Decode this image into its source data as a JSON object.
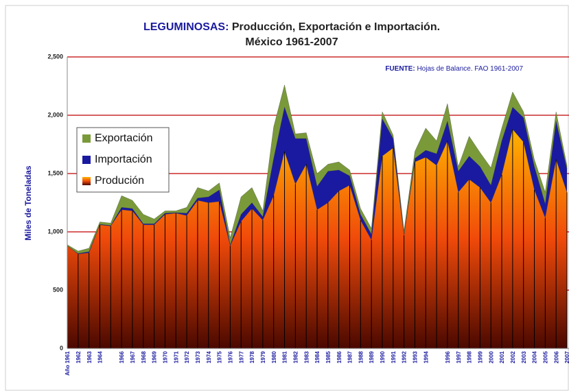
{
  "chart_data": {
    "type": "stacked_area",
    "title": {
      "label": "LEGUMINOSAS:",
      "text": "Producción, Exportación e Importación."
    },
    "subtitle": "México 1961-2007",
    "source": {
      "label": "FUENTE:",
      "text": "Hojas de Balance. FAO 1961-2007"
    },
    "y_label": "Miles de Toneladas",
    "categories": [
      "Año 1961",
      "1962",
      "1963",
      "1964",
      null,
      "1966",
      "1967",
      "1968",
      "1969",
      "1970",
      "1971",
      "1972",
      "1973",
      "1974",
      "1975",
      "1976",
      "1977",
      "1978",
      "1979",
      "1980",
      "1981",
      "1982",
      "1983",
      "1984",
      "1985",
      "1986",
      "1987",
      "1988",
      "1989",
      "1990",
      "1991",
      "1992",
      "1993",
      "1994",
      null,
      "1996",
      "1997",
      "1998",
      "1999",
      "2000",
      "2001",
      "2002",
      "2003",
      "2004",
      "2005",
      "2006",
      "2007"
    ],
    "series": [
      {
        "name": "Produción",
        "color": "#ffb400",
        "values": [
          880,
          810,
          820,
          1060,
          1050,
          1190,
          1180,
          1060,
          1060,
          1150,
          1160,
          1140,
          1270,
          1250,
          1260,
          880,
          1090,
          1200,
          1100,
          1310,
          1690,
          1410,
          1580,
          1190,
          1250,
          1350,
          1400,
          1100,
          930,
          1650,
          1720,
          970,
          1600,
          1640,
          1570,
          1780,
          1340,
          1450,
          1380,
          1250,
          1490,
          1880,
          1770,
          1360,
          1120,
          1620,
          1340
        ]
      },
      {
        "name": "Importación",
        "color": "#1a1aa0",
        "values": [
          0,
          5,
          10,
          5,
          5,
          20,
          20,
          10,
          10,
          10,
          5,
          20,
          20,
          50,
          100,
          10,
          60,
          50,
          30,
          320,
          380,
          390,
          220,
          200,
          270,
          180,
          80,
          50,
          50,
          320,
          80,
          10,
          30,
          60,
          100,
          170,
          180,
          200,
          180,
          150,
          290,
          190,
          210,
          200,
          120,
          330,
          200
        ]
      },
      {
        "name": "Exportación",
        "color": "#7a9a3a",
        "values": [
          10,
          20,
          30,
          20,
          20,
          100,
          70,
          80,
          40,
          20,
          15,
          50,
          90,
          50,
          60,
          60,
          150,
          130,
          50,
          270,
          190,
          40,
          50,
          110,
          60,
          70,
          50,
          50,
          50,
          60,
          30,
          30,
          60,
          190,
          110,
          150,
          40,
          170,
          120,
          150,
          110,
          130,
          50,
          60,
          100,
          80,
          30
        ]
      }
    ],
    "ylim": [
      0,
      2500
    ],
    "yticks": [
      0,
      500,
      {
        "value": 1000,
        "label": "1,000"
      },
      {
        "value": 1500,
        "label": "1,500"
      },
      {
        "value": 2000,
        "label": "2,000"
      },
      {
        "value": 2500,
        "label": "2,500"
      }
    ],
    "grid": true,
    "grid_color": "#c00000",
    "legend": "upper left"
  }
}
